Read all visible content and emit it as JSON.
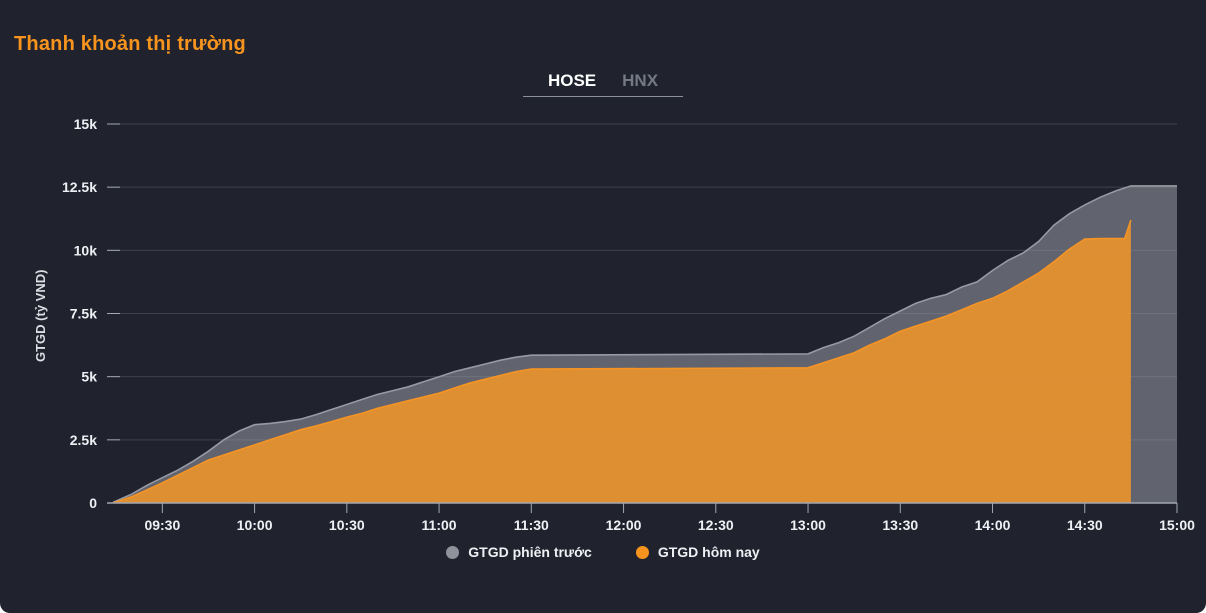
{
  "header": {
    "title": "Thanh khoản thị trường"
  },
  "tabs": {
    "hose": "HOSE",
    "hnx": "HNX",
    "active": "HOSE"
  },
  "colors": {
    "background": "#20232e",
    "title": "#f7941e",
    "active_tab": "#ffffff",
    "inactive_tab": "#747986",
    "axis_text": "#eef0f4",
    "axis_line": "#a2a7b2",
    "gridline": "rgba(255,255,255,0.14)"
  },
  "chart_data": {
    "type": "area",
    "title": "Thanh khoản thị trường",
    "xlabel": "",
    "ylabel": "GTGD (tỷ VND)",
    "ylim": [
      0,
      15000
    ],
    "x_range": [
      "09:12",
      "15:00"
    ],
    "grid": "horizontal",
    "legend_position": "bottom-center",
    "x_ticks": [
      "09:30",
      "10:00",
      "10:30",
      "11:00",
      "11:30",
      "12:00",
      "12:30",
      "13:00",
      "13:30",
      "14:00",
      "14:30",
      "15:00"
    ],
    "y_ticks": [
      {
        "label": "0",
        "value": 0
      },
      {
        "label": "2.5k",
        "value": 2500
      },
      {
        "label": "5k",
        "value": 5000
      },
      {
        "label": "7.5k",
        "value": 7500
      },
      {
        "label": "10k",
        "value": 10000
      },
      {
        "label": "12.5k",
        "value": 12500
      },
      {
        "label": "15k",
        "value": 15000
      }
    ],
    "series": [
      {
        "name": "GTGD phiên trước",
        "legend_color": "#8f929a",
        "line_color": "#979aa3",
        "fill_color": "rgba(151,155,164,0.55)",
        "points": [
          [
            "09:14",
            30
          ],
          [
            "09:15",
            80
          ],
          [
            "09:20",
            350
          ],
          [
            "09:25",
            700
          ],
          [
            "09:30",
            1000
          ],
          [
            "09:35",
            1300
          ],
          [
            "09:40",
            1650
          ],
          [
            "09:45",
            2050
          ],
          [
            "09:50",
            2500
          ],
          [
            "09:55",
            2850
          ],
          [
            "10:00",
            3100
          ],
          [
            "10:05",
            3150
          ],
          [
            "10:10",
            3220
          ],
          [
            "10:15",
            3320
          ],
          [
            "10:20",
            3500
          ],
          [
            "10:25",
            3700
          ],
          [
            "10:30",
            3900
          ],
          [
            "10:35",
            4100
          ],
          [
            "10:40",
            4300
          ],
          [
            "10:45",
            4450
          ],
          [
            "10:50",
            4600
          ],
          [
            "10:55",
            4800
          ],
          [
            "11:00",
            5000
          ],
          [
            "11:05",
            5200
          ],
          [
            "11:10",
            5350
          ],
          [
            "11:15",
            5500
          ],
          [
            "11:20",
            5650
          ],
          [
            "11:25",
            5770
          ],
          [
            "11:30",
            5850
          ],
          [
            "13:00",
            5900
          ],
          [
            "13:05",
            6150
          ],
          [
            "13:10",
            6350
          ],
          [
            "13:15",
            6600
          ],
          [
            "13:20",
            6950
          ],
          [
            "13:25",
            7300
          ],
          [
            "13:30",
            7600
          ],
          [
            "13:35",
            7900
          ],
          [
            "13:40",
            8100
          ],
          [
            "13:45",
            8250
          ],
          [
            "13:50",
            8550
          ],
          [
            "13:55",
            8750
          ],
          [
            "14:00",
            9200
          ],
          [
            "14:05",
            9600
          ],
          [
            "14:10",
            9900
          ],
          [
            "14:15",
            10350
          ],
          [
            "14:20",
            11000
          ],
          [
            "14:25",
            11450
          ],
          [
            "14:30",
            11800
          ],
          [
            "14:35",
            12100
          ],
          [
            "14:40",
            12350
          ],
          [
            "14:45",
            12550
          ],
          [
            "15:00",
            12550
          ]
        ]
      },
      {
        "name": "GTGD hôm nay",
        "legend_color": "#f7941e",
        "line_color": "#f59425",
        "fill_color": "rgba(244,150,40,0.85)",
        "points": [
          [
            "09:14",
            10
          ],
          [
            "09:15",
            40
          ],
          [
            "09:20",
            250
          ],
          [
            "09:25",
            520
          ],
          [
            "09:30",
            800
          ],
          [
            "09:35",
            1100
          ],
          [
            "09:40",
            1400
          ],
          [
            "09:45",
            1700
          ],
          [
            "09:50",
            1900
          ],
          [
            "09:55",
            2100
          ],
          [
            "10:00",
            2300
          ],
          [
            "10:05",
            2500
          ],
          [
            "10:10",
            2700
          ],
          [
            "10:15",
            2900
          ],
          [
            "10:20",
            3050
          ],
          [
            "10:25",
            3220
          ],
          [
            "10:30",
            3400
          ],
          [
            "10:35",
            3550
          ],
          [
            "10:40",
            3750
          ],
          [
            "10:45",
            3900
          ],
          [
            "10:50",
            4050
          ],
          [
            "10:55",
            4200
          ],
          [
            "11:00",
            4350
          ],
          [
            "11:05",
            4550
          ],
          [
            "11:10",
            4750
          ],
          [
            "11:15",
            4900
          ],
          [
            "11:20",
            5050
          ],
          [
            "11:25",
            5200
          ],
          [
            "11:30",
            5300
          ],
          [
            "13:00",
            5350
          ],
          [
            "13:05",
            5550
          ],
          [
            "13:10",
            5750
          ],
          [
            "13:15",
            5950
          ],
          [
            "13:20",
            6250
          ],
          [
            "13:25",
            6500
          ],
          [
            "13:30",
            6800
          ],
          [
            "13:35",
            7000
          ],
          [
            "13:40",
            7200
          ],
          [
            "13:45",
            7400
          ],
          [
            "13:50",
            7650
          ],
          [
            "13:55",
            7900
          ],
          [
            "14:00",
            8100
          ],
          [
            "14:05",
            8400
          ],
          [
            "14:10",
            8750
          ],
          [
            "14:15",
            9100
          ],
          [
            "14:20",
            9550
          ],
          [
            "14:25",
            10050
          ],
          [
            "14:30",
            10450
          ],
          [
            "14:35",
            10470
          ],
          [
            "14:43",
            10470
          ],
          [
            "14:45",
            11200
          ]
        ]
      }
    ]
  }
}
